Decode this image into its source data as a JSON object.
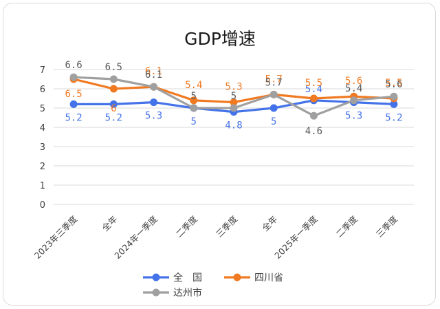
{
  "chart_data": {
    "type": "line",
    "title": "GDP增速",
    "categories": [
      "2023年三季度",
      "全年",
      "2024年一季度",
      "二季度",
      "三季度",
      "全年",
      "2025年一季度",
      "二季度",
      "三季度"
    ],
    "ylim": [
      0,
      7
    ],
    "yticks": [
      "0",
      "1",
      "2",
      "3",
      "4",
      "5",
      "6",
      "7"
    ],
    "grid": true,
    "legend_position": "bottom",
    "series": [
      {
        "name": "全　国",
        "color": "#4472e8",
        "values": [
          5.2,
          5.2,
          5.3,
          5.0,
          4.8,
          5.0,
          5.4,
          5.3,
          5.2
        ],
        "labels": [
          "5.2",
          "5.2",
          "5.3",
          "5",
          "4.8",
          "5",
          "5.4",
          "5.3",
          "5.2"
        ]
      },
      {
        "name": "四川省",
        "color": "#f07a22",
        "values": [
          6.5,
          6.0,
          6.1,
          5.4,
          5.3,
          5.7,
          5.5,
          5.6,
          5.5
        ],
        "labels": [
          "6.5",
          "6",
          "6.1",
          "5.4",
          "5.3",
          "5.7",
          "5.5",
          "5.6",
          "5.5"
        ]
      },
      {
        "name": "达州市",
        "color": "#a0a0a0",
        "values": [
          6.6,
          6.5,
          6.1,
          5.0,
          5.0,
          5.7,
          4.6,
          5.4,
          5.6
        ],
        "labels": [
          "6.6",
          "6.5",
          "6.1",
          "5",
          "5",
          "5.7",
          "4.6",
          "5.4",
          "5.6"
        ]
      }
    ]
  }
}
